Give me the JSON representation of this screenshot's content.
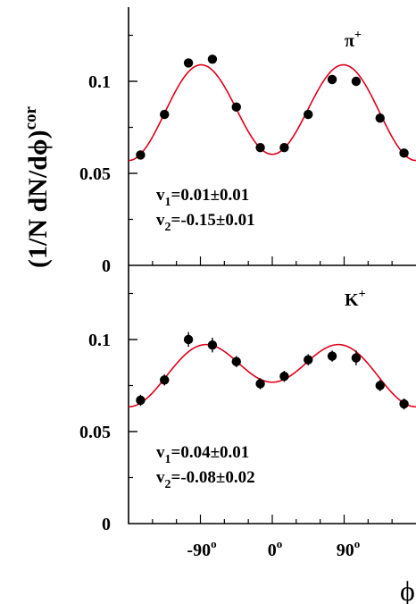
{
  "chart_data": [
    {
      "type": "scatter",
      "panel": "top",
      "particle": {
        "base": "π",
        "charge": "+"
      },
      "x_ticks": [
        -90,
        0,
        90
      ],
      "xlim": [
        -180,
        180
      ],
      "ylim": [
        0,
        0.14
      ],
      "y_ticks": [
        {
          "value": 0,
          "label": "0"
        },
        {
          "value": 0.05,
          "label": "0.05"
        },
        {
          "value": 0.1,
          "label": "0.1"
        }
      ],
      "x": [
        -165,
        -135,
        -105,
        -75,
        -45,
        -15,
        15,
        45,
        75,
        105,
        135,
        165
      ],
      "values": [
        0.06,
        0.082,
        0.11,
        0.112,
        0.086,
        0.064,
        0.064,
        0.082,
        0.101,
        0.1,
        0.08,
        0.061
      ],
      "errors": [
        0.001,
        0.001,
        0.001,
        0.001,
        0.001,
        0.001,
        0.001,
        0.001,
        0.001,
        0.001,
        0.001,
        0.001
      ],
      "fit": {
        "norm": 0.0838,
        "v1": 0.01,
        "v2": -0.15,
        "color": "#e0001b"
      },
      "stats": [
        {
          "name": "v",
          "sub": "1",
          "text": "=0.01±0.01"
        },
        {
          "name": "v",
          "sub": "2",
          "text": "=-0.15±0.01"
        }
      ]
    },
    {
      "type": "scatter",
      "panel": "bottom",
      "particle": {
        "base": "K",
        "charge": "+"
      },
      "x_ticks": [
        -90,
        0,
        90
      ],
      "xlim": [
        -180,
        180
      ],
      "ylim": [
        0,
        0.14
      ],
      "y_ticks": [
        {
          "value": 0,
          "label": "0"
        },
        {
          "value": 0.05,
          "label": "0.05"
        },
        {
          "value": 0.1,
          "label": "0.1"
        }
      ],
      "x": [
        -165,
        -135,
        -105,
        -75,
        -45,
        -15,
        15,
        45,
        75,
        105,
        135,
        165
      ],
      "values": [
        0.067,
        0.078,
        0.1,
        0.097,
        0.088,
        0.076,
        0.08,
        0.089,
        0.091,
        0.09,
        0.075,
        0.065
      ],
      "errors": [
        0.003,
        0.003,
        0.004,
        0.004,
        0.003,
        0.003,
        0.003,
        0.003,
        0.003,
        0.004,
        0.003,
        0.003
      ],
      "fit": {
        "norm": 0.0835,
        "v1": 0.04,
        "v2": -0.08,
        "color": "#e0001b"
      },
      "stats": [
        {
          "name": "v",
          "sub": "1",
          "text": "=0.04±0.01"
        },
        {
          "name": "v",
          "sub": "2",
          "text": "=-0.08±0.02"
        }
      ]
    }
  ],
  "x_tick_labels": [
    "-90",
    "0",
    "90"
  ],
  "x_tick_unit": "o",
  "xlabel": "ϕ",
  "ylabel": {
    "main": "(1/N dN/dϕ)",
    "sup": "cor"
  }
}
